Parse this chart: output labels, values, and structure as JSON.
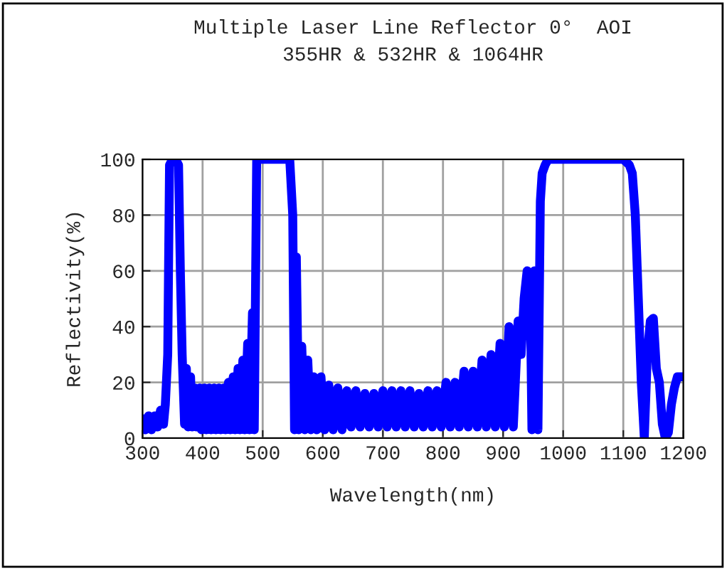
{
  "chart_data": {
    "type": "line",
    "title": "Multiple Laser Line Reflector 0°  AOI\n355HR & 532HR & 1064HR",
    "xlabel": "Wavelength(nm)",
    "ylabel": "Reflectivity(%)",
    "xlim": [
      300,
      1200
    ],
    "xticks": [
      300,
      400,
      500,
      600,
      700,
      800,
      900,
      1000,
      1100,
      1200
    ],
    "ylim": [
      0,
      100
    ],
    "yticks": [
      0,
      20,
      40,
      60,
      80,
      100
    ],
    "grid": true,
    "legend": false,
    "marker": "none",
    "line_style": "solid",
    "series": [
      {
        "color": "#0000ff",
        "x": [
          300,
          305,
          310,
          315,
          320,
          325,
          330,
          335,
          338,
          342,
          345,
          350,
          355,
          360,
          363,
          366,
          370,
          373,
          376,
          380,
          383,
          387,
          390,
          395,
          398,
          403,
          406,
          411,
          414,
          419,
          422,
          427,
          430,
          435,
          438,
          443,
          446,
          451,
          454,
          459,
          462,
          467,
          470,
          475,
          478,
          483,
          486,
          490,
          500,
          520,
          545,
          550,
          553,
          556,
          560,
          565,
          570,
          575,
          580,
          585,
          590,
          597,
          603,
          610,
          617,
          625,
          632,
          640,
          647,
          655,
          662,
          670,
          677,
          685,
          692,
          700,
          707,
          715,
          722,
          730,
          737,
          745,
          752,
          760,
          767,
          775,
          782,
          790,
          797,
          805,
          812,
          820,
          827,
          835,
          842,
          850,
          857,
          865,
          872,
          880,
          887,
          895,
          902,
          910,
          917,
          925,
          930,
          935,
          940,
          945,
          948,
          952,
          958,
          962,
          965,
          970,
          975,
          1000,
          1050,
          1100,
          1110,
          1115,
          1120,
          1125,
          1130,
          1135,
          1140,
          1145,
          1150,
          1155,
          1160,
          1165,
          1170,
          1175,
          1180,
          1185,
          1190,
          1200
        ],
        "values": [
          7,
          3,
          8,
          3,
          8,
          4,
          10,
          5,
          12,
          30,
          98,
          100,
          100,
          98,
          60,
          30,
          5,
          25,
          4,
          22,
          4,
          18,
          4,
          18,
          3,
          18,
          3,
          18,
          3,
          18,
          3,
          18,
          3,
          18,
          3,
          20,
          3,
          22,
          3,
          25,
          3,
          28,
          3,
          34,
          3,
          45,
          3,
          100,
          100,
          100,
          100,
          80,
          3,
          65,
          3,
          33,
          3,
          28,
          3,
          22,
          3,
          22,
          3,
          19,
          3,
          18,
          3,
          17,
          4,
          17,
          4,
          16,
          4,
          16,
          4,
          17,
          4,
          17,
          4,
          17,
          4,
          17,
          4,
          16,
          4,
          17,
          4,
          17,
          4,
          20,
          4,
          20,
          4,
          24,
          4,
          24,
          4,
          28,
          4,
          30,
          4,
          34,
          4,
          40,
          4,
          42,
          30,
          50,
          60,
          55,
          3,
          60,
          3,
          85,
          95,
          98,
          100,
          100,
          100,
          100,
          98,
          95,
          80,
          50,
          20,
          0,
          30,
          42,
          43,
          25,
          20,
          5,
          0,
          2,
          12,
          18,
          22,
          22
        ]
      }
    ]
  }
}
